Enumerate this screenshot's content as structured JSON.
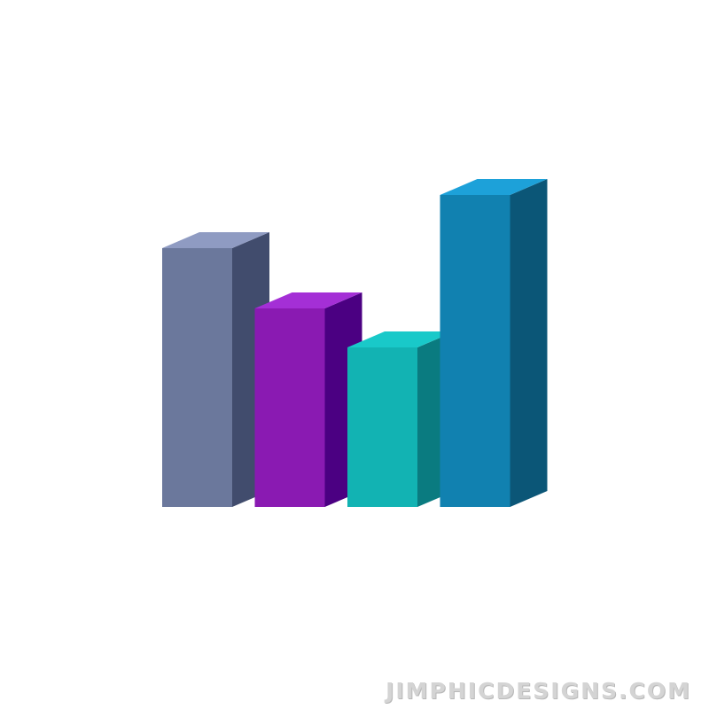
{
  "watermark": "JIMPHICDESIGNS.COM",
  "chart_data": {
    "type": "bar",
    "style": "3d-isometric-columns",
    "title": "",
    "xlabel": "",
    "ylabel": "",
    "grid": false,
    "legend": "none",
    "ylim": [
      0,
      100
    ],
    "series": [
      {
        "values": [
          73,
          56,
          45,
          88
        ],
        "colors": [
          {
            "front": "#6b789c",
            "side": "#414c6d",
            "top": "#8f9bc2"
          },
          {
            "front": "#8a1ab2",
            "side": "#4b0082",
            "top": "#a42fd6"
          },
          {
            "front": "#12b3b3",
            "side": "#0a7b80",
            "top": "#19c9c9"
          },
          {
            "front": "#1181b0",
            "side": "#0b5677",
            "top": "#1da1d9"
          }
        ]
      }
    ]
  }
}
